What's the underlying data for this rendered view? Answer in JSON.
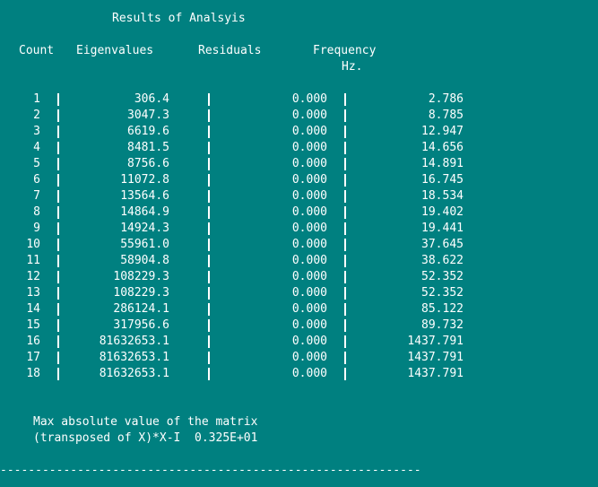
{
  "title": "Results of Analsyis",
  "headers": {
    "count": "Count",
    "eigenvalues": "Eigenvalues",
    "residuals": "Residuals",
    "frequency": "Frequency",
    "frequency_unit": "Hz."
  },
  "rows": [
    {
      "count": "1",
      "eig": "306.4",
      "res": "0.000",
      "freq": "2.786"
    },
    {
      "count": "2",
      "eig": "3047.3",
      "res": "0.000",
      "freq": "8.785"
    },
    {
      "count": "3",
      "eig": "6619.6",
      "res": "0.000",
      "freq": "12.947"
    },
    {
      "count": "4",
      "eig": "8481.5",
      "res": "0.000",
      "freq": "14.656"
    },
    {
      "count": "5",
      "eig": "8756.6",
      "res": "0.000",
      "freq": "14.891"
    },
    {
      "count": "6",
      "eig": "11072.8",
      "res": "0.000",
      "freq": "16.745"
    },
    {
      "count": "7",
      "eig": "13564.6",
      "res": "0.000",
      "freq": "18.534"
    },
    {
      "count": "8",
      "eig": "14864.9",
      "res": "0.000",
      "freq": "19.402"
    },
    {
      "count": "9",
      "eig": "14924.3",
      "res": "0.000",
      "freq": "19.441"
    },
    {
      "count": "10",
      "eig": "55961.0",
      "res": "0.000",
      "freq": "37.645"
    },
    {
      "count": "11",
      "eig": "58904.8",
      "res": "0.000",
      "freq": "38.622"
    },
    {
      "count": "12",
      "eig": "108229.3",
      "res": "0.000",
      "freq": "52.352"
    },
    {
      "count": "13",
      "eig": "108229.3",
      "res": "0.000",
      "freq": "52.352"
    },
    {
      "count": "14",
      "eig": "286124.1",
      "res": "0.000",
      "freq": "85.122"
    },
    {
      "count": "15",
      "eig": "317956.6",
      "res": "0.000",
      "freq": "89.732"
    },
    {
      "count": "16",
      "eig": "81632653.1",
      "res": "0.000",
      "freq": "1437.791"
    },
    {
      "count": "17",
      "eig": "81632653.1",
      "res": "0.000",
      "freq": "1437.791"
    },
    {
      "count": "18",
      "eig": "81632653.1",
      "res": "0.000",
      "freq": "1437.791"
    }
  ],
  "footer": {
    "line1": "Max absolute value of the matrix",
    "line2": "(transposed of X)*X-I  0.325E+01"
  },
  "separator": "------------------------------------------------------------",
  "colors": {
    "background": "#008080",
    "text": "#ffffff"
  }
}
